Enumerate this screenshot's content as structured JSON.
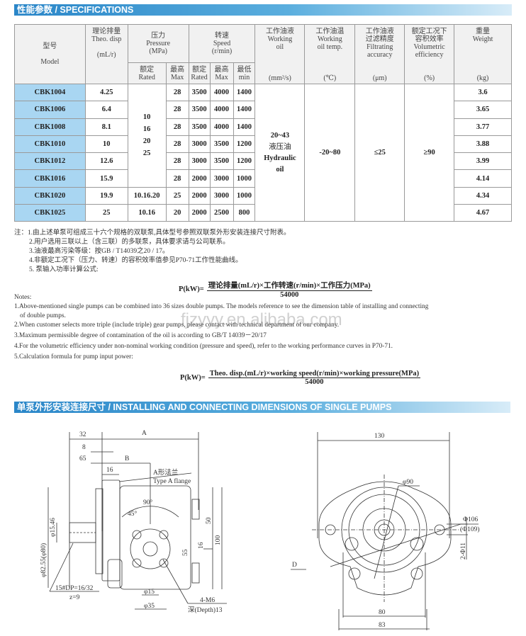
{
  "section1_title": "性能参数 / SPECIFICATIONS",
  "table": {
    "headers": {
      "model": [
        "型号",
        "Model"
      ],
      "disp": [
        "理论排量",
        "Theo. disp",
        "(mL/r)"
      ],
      "pressure": [
        "压力",
        "Pressure",
        "(MPa)"
      ],
      "pressure_rated": [
        "额定",
        "Rated"
      ],
      "pressure_max": [
        "最高",
        "Max"
      ],
      "speed": [
        "转速",
        "Speed",
        "(r/min)"
      ],
      "speed_rated": [
        "额定",
        "Rated"
      ],
      "speed_max": [
        "最高",
        "Max"
      ],
      "speed_min": [
        "最低",
        "min"
      ],
      "oil": [
        "工作油液",
        "Working",
        "oil",
        "(mm²/s)"
      ],
      "temp": [
        "工作油温",
        "Working",
        "oil temp.",
        "(℃)"
      ],
      "filter": [
        "工作油液",
        "过滤精度",
        "Filtrating",
        "accuracy",
        "(μm)"
      ],
      "eff": [
        "额定工况下",
        "容积效率",
        "Volumetric",
        "efficiency",
        "(%)"
      ],
      "weight": [
        "重量",
        "Weight",
        "(kg)"
      ]
    },
    "rows": [
      {
        "model": "CBK1004",
        "disp": "4.25",
        "pmax": "28",
        "rated": "3500",
        "max": "4000",
        "min": "1400",
        "weight": "3.6"
      },
      {
        "model": "CBK1006",
        "disp": "6.4",
        "pmax": "28",
        "rated": "3500",
        "max": "4000",
        "min": "1400",
        "weight": "3.65"
      },
      {
        "model": "CBK1008",
        "disp": "8.1",
        "pmax": "28",
        "rated": "3500",
        "max": "4000",
        "min": "1400",
        "weight": "3.77"
      },
      {
        "model": "CBK1010",
        "disp": "10",
        "pmax": "28",
        "rated": "3000",
        "max": "3500",
        "min": "1200",
        "weight": "3.88"
      },
      {
        "model": "CBK1012",
        "disp": "12.6",
        "pmax": "28",
        "rated": "3000",
        "max": "3500",
        "min": "1200",
        "weight": "3.99"
      },
      {
        "model": "CBK1016",
        "disp": "15.9",
        "pmax": "28",
        "rated": "2000",
        "max": "3000",
        "min": "1000",
        "weight": "4.14"
      },
      {
        "model": "CBK1020",
        "disp": "19.9",
        "prated": "10.16.20",
        "pmax": "25",
        "rated": "2000",
        "max": "3000",
        "min": "1000",
        "weight": "4.34"
      },
      {
        "model": "CBK1025",
        "disp": "25",
        "prated": "10.16",
        "pmax": "20",
        "rated": "2000",
        "max": "2500",
        "min": "800",
        "weight": "4.67"
      }
    ],
    "prated_group": [
      "10",
      "16",
      "20",
      "25"
    ],
    "oil_value": [
      "20~43",
      "液压油",
      "Hydraulic",
      "oil"
    ],
    "temp_value": "-20~80",
    "filter_value": "≤25",
    "eff_value": "≥90"
  },
  "notes_cn": [
    "注：1.由上述单泵可组成三十六个规格的双联泵,具体型号参照双联泵外形安装连接尺寸附表。",
    "2.用户选用三联以上（含三联）的多联泵，具体要求请与公司联系。",
    "3.油液最高污染等级：按GB / T14039之20 / 17。",
    "4.非额定工况下（压力、转速）的容积效率值参见P70-71工作性能曲线。",
    "5. 泵输入功率计算公式:"
  ],
  "formula_cn": {
    "lhs": "P(kW)=",
    "num": "理论排量(mL/r)×工作转速(r/min)×工作压力(MPa)",
    "den": "54000"
  },
  "notes_en_title": "Notes:",
  "notes_en": [
    "1.Above-mentioned single pumps can be combined into 36 sizes double pumps. The models reference to see the dimension table of installing and connecting",
    "of double pumps.",
    "2.When customer selects more triple (include triple) gear pumps, please contact with technical department of our company.",
    "3.Maximum permissible degree of contamination of the oil is according to GB/T 14039－20/17",
    "4.For the volumetric efficiency under non-nominal working condition (pressure and speed), refer to the working performance curves in P70-71.",
    "5.Calculation formula for pump input  power:"
  ],
  "formula_en": {
    "lhs": "P(kW)=",
    "num": "Theo. disp.(mL/r)×working speed(r/min)×working pressure(MPa)",
    "den": "54000"
  },
  "watermark": "fjzyyy.en.alibaba.com",
  "section2_title": "单泵外形安装连接尺寸 / INSTALLING AND CONNECTING DIMENSIONS OF SINGLE PUMPS",
  "drawing_side": {
    "dims": [
      "32",
      "A",
      "8",
      "65",
      "B",
      "16",
      "A形法兰",
      "Type A flange",
      "90°",
      "45°",
      "φ82.55(φ80)",
      "φ15.46",
      "50",
      "16",
      "55",
      "100",
      "15#DP=16/32",
      "z=9",
      "φ15",
      "φ35",
      "4-M6",
      "深(Depth)13"
    ]
  },
  "drawing_front": {
    "dims": [
      "130",
      "φ90",
      "Φ106",
      "(Φ109)",
      "D",
      "2-Φ11",
      "80",
      "83"
    ]
  }
}
